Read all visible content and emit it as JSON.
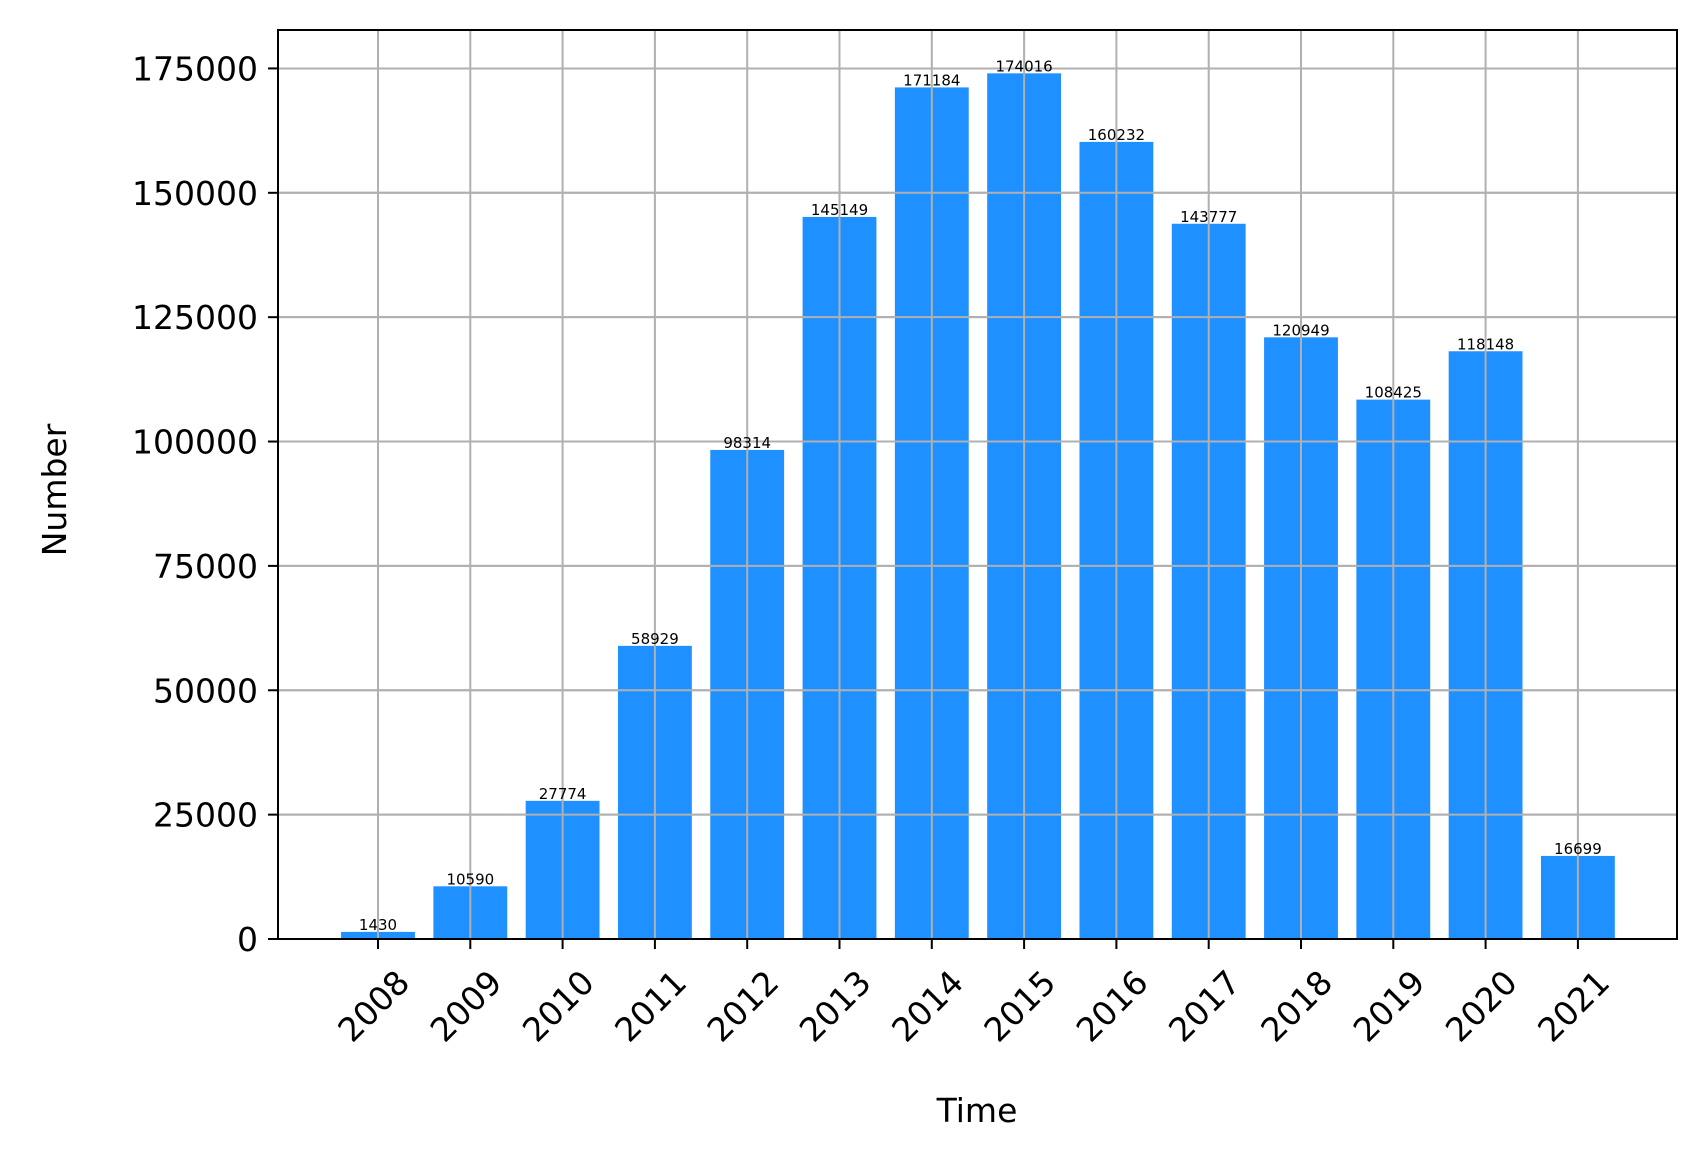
{
  "chart_data": {
    "type": "bar",
    "title": "",
    "xlabel": "Time",
    "ylabel": "Number",
    "categories": [
      "2008",
      "2009",
      "2010",
      "2011",
      "2012",
      "2013",
      "2014",
      "2015",
      "2016",
      "2017",
      "2018",
      "2019",
      "2020",
      "2021"
    ],
    "values": [
      1430,
      10590,
      27774,
      58929,
      98314,
      145149,
      171184,
      174016,
      160232,
      143777,
      120949,
      108425,
      118148,
      16699
    ],
    "data_labels": [
      "1430",
      "10590",
      "27774",
      "58929",
      "98314",
      "145149",
      "171184",
      "174016",
      "160232",
      "143777",
      "120949",
      "108425",
      "118148",
      "16699"
    ],
    "yticks": [
      0,
      25000,
      50000,
      75000,
      100000,
      125000,
      150000,
      175000
    ],
    "ytick_labels": [
      "0",
      "25000",
      "50000",
      "75000",
      "100000",
      "125000",
      "150000",
      "175000"
    ],
    "ylim": [
      0,
      182727
    ],
    "grid": true,
    "bar_color": "#1e90ff",
    "grid_color": "#b0b0b0",
    "xtick_rotation_deg": 45
  }
}
